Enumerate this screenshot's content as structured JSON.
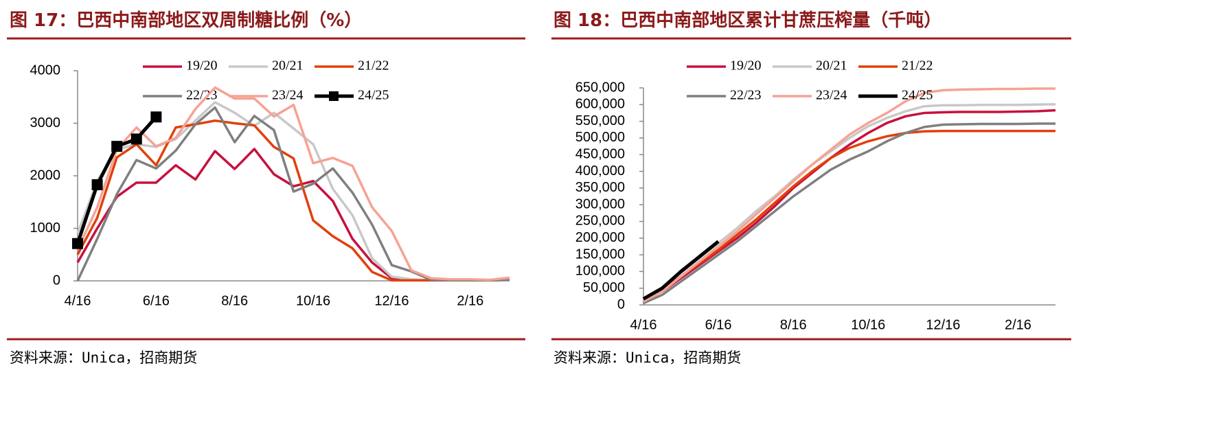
{
  "chart_data": [
    {
      "type": "line",
      "title": "图 17：巴西中南部地区双周制糖比例（%）",
      "source": "资料来源：Unica，招商期货",
      "categories": [
        "4/16",
        null,
        null,
        null,
        "6/16",
        null,
        null,
        null,
        "8/16",
        null,
        null,
        null,
        "10/16",
        null,
        null,
        null,
        "12/16",
        null,
        null,
        null,
        "2/16",
        null,
        null
      ],
      "ylim": [
        0,
        4000
      ],
      "yticks": [
        0,
        1000,
        2000,
        3000,
        4000
      ],
      "grid": false,
      "legend": "top",
      "series": [
        {
          "name": "19/20",
          "color": "#c8103e",
          "values": [
            350,
            1000,
            1600,
            1870,
            1870,
            2200,
            1930,
            2470,
            2130,
            2510,
            2030,
            1800,
            1900,
            1520,
            800,
            350,
            50,
            20,
            10,
            10,
            10,
            10,
            30
          ]
        },
        {
          "name": "20/21",
          "color": "#c8c8c8",
          "values": [
            900,
            1900,
            2500,
            2600,
            2550,
            2700,
            3050,
            3400,
            3200,
            2950,
            3200,
            2900,
            2600,
            1750,
            1250,
            430,
            80,
            30,
            10,
            10,
            10,
            10,
            50
          ]
        },
        {
          "name": "21/22",
          "color": "#e0400c",
          "values": [
            500,
            1200,
            2350,
            2600,
            2200,
            2920,
            2980,
            3050,
            3000,
            2960,
            2550,
            2330,
            1150,
            850,
            620,
            170,
            10,
            10,
            10,
            10,
            10,
            10,
            20
          ]
        },
        {
          "name": "22/23",
          "color": "#7f7f7f",
          "values": [
            0,
            800,
            1650,
            2300,
            2140,
            2480,
            2980,
            3300,
            2640,
            3140,
            2870,
            1700,
            1850,
            2140,
            1680,
            1070,
            300,
            180,
            20,
            10,
            10,
            10,
            20
          ]
        },
        {
          "name": "23/24",
          "color": "#f6a294",
          "values": [
            600,
            1400,
            2500,
            2920,
            2560,
            2720,
            3270,
            3680,
            3470,
            3470,
            3130,
            3350,
            2240,
            2340,
            2190,
            1400,
            950,
            200,
            50,
            30,
            30,
            20,
            60
          ]
        },
        {
          "name": "24/25",
          "color": "#000000",
          "marker": "square",
          "values": [
            710,
            1830,
            2560,
            2700,
            3120,
            null,
            null,
            null,
            null,
            null,
            null,
            null,
            null,
            null,
            null,
            null,
            null,
            null,
            null,
            null,
            null,
            null,
            null
          ]
        }
      ]
    },
    {
      "type": "line",
      "title": "图 18：巴西中南部地区累计甘蔗压榨量（千吨）",
      "source": "资料来源：Unica，招商期货",
      "categories": [
        "4/16",
        null,
        null,
        null,
        "6/16",
        null,
        null,
        null,
        "8/16",
        null,
        null,
        null,
        "10/16",
        null,
        null,
        null,
        "12/16",
        null,
        null,
        null,
        "2/16",
        null,
        null
      ],
      "ylim": [
        0,
        650000
      ],
      "yticks": [
        0,
        {
          "value": 50000,
          "label": "50,000"
        },
        {
          "value": 100000,
          "label": "100,000"
        },
        {
          "value": 150000,
          "label": "150,000"
        },
        {
          "value": 200000,
          "label": "200,000"
        },
        {
          "value": 250000,
          "label": "250,000"
        },
        {
          "value": 300000,
          "label": "300,000"
        },
        {
          "value": 350000,
          "label": "350,000"
        },
        {
          "value": 400000,
          "label": "400,000"
        },
        {
          "value": 450000,
          "label": "450,000"
        },
        {
          "value": 500000,
          "label": "500,000"
        },
        {
          "value": 550000,
          "label": "550,000"
        },
        {
          "value": 600000,
          "label": "600,000"
        },
        {
          "value": 650000,
          "label": "650,000"
        }
      ],
      "grid": false,
      "legend": "top",
      "series": [
        {
          "name": "19/20",
          "color": "#c8103e",
          "values": [
            10000,
            40000,
            80000,
            120000,
            160000,
            200000,
            245000,
            295000,
            350000,
            395000,
            440000,
            480000,
            515000,
            545000,
            565000,
            575000,
            577000,
            578000,
            578000,
            578000,
            579000,
            580000,
            583000
          ]
        },
        {
          "name": "20/21",
          "color": "#c8c8c8",
          "values": [
            15000,
            50000,
            95000,
            140000,
            185000,
            230000,
            280000,
            325000,
            375000,
            420000,
            460000,
            500000,
            535000,
            560000,
            580000,
            595000,
            598000,
            598000,
            599000,
            599000,
            599000,
            600000,
            601000
          ]
        },
        {
          "name": "21/22",
          "color": "#e0400c",
          "values": [
            12000,
            45000,
            85000,
            125000,
            165000,
            210000,
            255000,
            305000,
            355000,
            400000,
            440000,
            470000,
            490000,
            505000,
            515000,
            520000,
            521000,
            521000,
            521000,
            521000,
            521000,
            521000,
            521000
          ]
        },
        {
          "name": "22/23",
          "color": "#7f7f7f",
          "values": [
            5000,
            30000,
            70000,
            110000,
            150000,
            190000,
            235000,
            280000,
            325000,
            365000,
            405000,
            435000,
            460000,
            490000,
            515000,
            533000,
            540000,
            541000,
            542000,
            542000,
            542000,
            543000,
            543000
          ]
        },
        {
          "name": "23/24",
          "color": "#f6a294",
          "values": [
            10000,
            40000,
            85000,
            130000,
            175000,
            220000,
            270000,
            320000,
            370000,
            420000,
            465000,
            510000,
            545000,
            575000,
            610000,
            635000,
            643000,
            645000,
            646000,
            647000,
            647000,
            648000,
            648000
          ]
        },
        {
          "name": "24/25",
          "color": "#000000",
          "values": [
            18000,
            50000,
            100000,
            145000,
            190000,
            null,
            null,
            null,
            null,
            null,
            null,
            null,
            null,
            null,
            null,
            null,
            null,
            null,
            null,
            null,
            null,
            null,
            null
          ]
        }
      ]
    }
  ]
}
